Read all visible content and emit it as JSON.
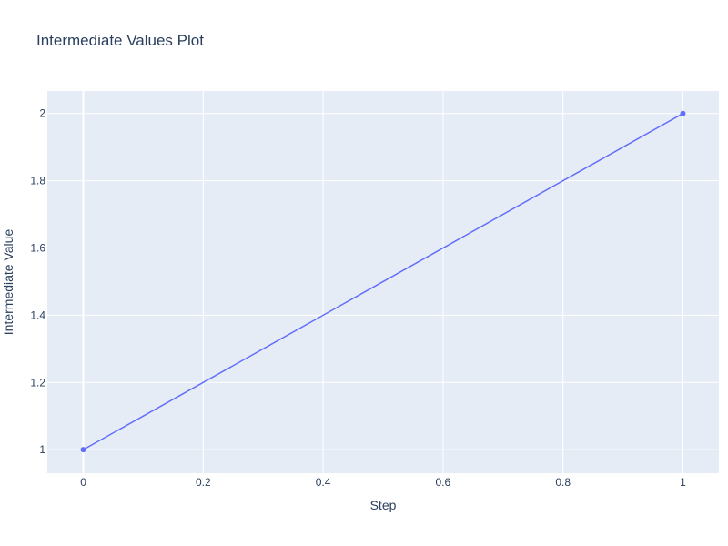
{
  "chart_data": {
    "type": "line",
    "title": "Intermediate Values Plot",
    "xlabel": "Step",
    "ylabel": "Intermediate Value",
    "x": [
      0,
      1
    ],
    "series": [
      {
        "values": [
          1,
          2
        ]
      }
    ],
    "xlim": [
      -0.06,
      1.06
    ],
    "ylim": [
      0.93,
      2.067
    ],
    "xticks": [
      0,
      0.2,
      0.4,
      0.6,
      0.8,
      1
    ],
    "xtick_labels": [
      "0",
      "0.2",
      "0.4",
      "0.6",
      "0.8",
      "1"
    ],
    "yticks": [
      1,
      1.2,
      1.4,
      1.6,
      1.8,
      2
    ],
    "ytick_labels": [
      "1",
      "1.2",
      "1.4",
      "1.6",
      "1.8",
      "2"
    ],
    "grid": true,
    "mode": "lines+markers",
    "colors": {
      "plot_background": "#e5ecf6",
      "gridline": "#ffffff",
      "line": "#636efa",
      "text": "#2a3f5f"
    }
  }
}
